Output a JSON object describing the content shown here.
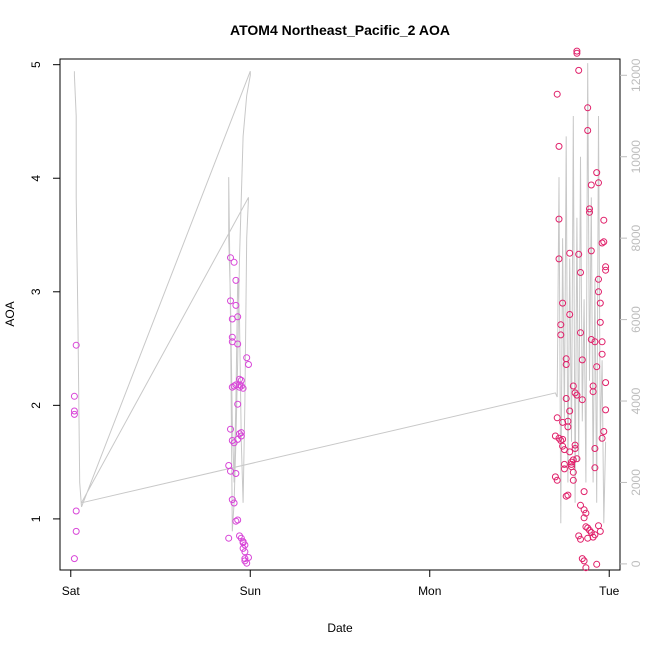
{
  "chart_data": {
    "type": "scatter",
    "title": "ATOM4 Northeast_Pacific_2 AOA",
    "xlabel": "Date",
    "ylabel": "AOA",
    "x_axis": {
      "kind": "time",
      "unit": "days",
      "ticks": [
        {
          "value": 0,
          "label": "Sat"
        },
        {
          "value": 1,
          "label": "Sun"
        },
        {
          "value": 2,
          "label": "Mon"
        },
        {
          "value": 3,
          "label": "Tue"
        }
      ],
      "lim": [
        -0.06,
        3.06
      ]
    },
    "y_axis_left": {
      "label": "AOA",
      "lim": [
        0.55,
        5.05
      ],
      "ticks": [
        1,
        2,
        3,
        4,
        5
      ]
    },
    "y_axis_right": {
      "label": "",
      "lim": [
        -150,
        12400
      ],
      "ticks": [
        0,
        2000,
        4000,
        6000,
        8000,
        10000,
        12000
      ],
      "color": "#bdbdbd"
    },
    "grid": false,
    "legend": "none",
    "colors": {
      "magenta": "#d846d8",
      "pink": "#e0206a",
      "line": "#c8c8c8"
    },
    "series": [
      {
        "kind": "line",
        "axis": "right",
        "x": [
          0.02,
          0.02,
          0.03,
          0.03,
          0.04,
          0.05,
          0.06,
          1.0,
          1.0,
          0.98,
          0.97,
          0.96,
          0.95,
          0.94,
          0.93,
          0.92,
          0.91,
          0.9,
          0.89,
          0.88,
          0.88,
          0.89,
          0.9,
          0.91,
          0.92,
          0.93,
          0.94,
          0.95,
          0.96,
          0.97,
          0.98,
          0.99,
          0.06,
          2.7,
          2.71,
          2.72,
          2.73,
          2.74,
          2.75,
          2.76,
          2.77,
          2.78,
          2.79,
          2.8,
          2.81,
          2.82,
          2.83,
          2.84,
          2.85,
          2.86,
          2.87,
          2.88,
          2.89,
          2.9,
          2.91,
          2.92,
          2.93,
          2.94,
          2.95,
          2.96,
          2.97,
          2.98
        ],
        "y": [
          12100,
          12000,
          11000,
          9000,
          6000,
          2000,
          1400,
          12100,
          12000,
          11500,
          11000,
          10500,
          9000,
          7500,
          5000,
          3000,
          1500,
          800,
          6000,
          9500,
          8000,
          6500,
          3500,
          2000,
          4000,
          7000,
          6000,
          3000,
          1500,
          4000,
          8000,
          9000,
          1500,
          4200,
          4100,
          9500,
          1000,
          8000,
          3500,
          10500,
          2000,
          7500,
          3000,
          11000,
          1500,
          8500,
          2500,
          10000,
          3500,
          6500,
          2000,
          12300,
          4500,
          9000,
          2000,
          7000,
          1500,
          11000,
          3000,
          5000,
          1000,
          3000
        ]
      },
      {
        "kind": "points",
        "name": "",
        "color": "#d846d8",
        "x": [
          0.02,
          0.02,
          0.03,
          0.03,
          0.02,
          0.03,
          0.02,
          0.89,
          0.89,
          0.9,
          0.9,
          0.9,
          0.91,
          0.92,
          0.92,
          0.93,
          0.93,
          0.94,
          0.94,
          0.95,
          0.95,
          0.96,
          0.96,
          0.97,
          0.97,
          0.88,
          0.89,
          0.9,
          0.91,
          0.92,
          0.93,
          0.94,
          0.95,
          0.96,
          0.97,
          0.98,
          0.99,
          0.96,
          0.95,
          0.94,
          0.93,
          0.92,
          0.91,
          0.9,
          0.89,
          0.88,
          0.97,
          0.98,
          0.99,
          0.9,
          0.91,
          0.92,
          0.93,
          0.94,
          0.95
        ],
        "y": [
          2.08,
          1.95,
          2.53,
          1.07,
          1.92,
          0.89,
          0.65,
          3.3,
          2.92,
          2.76,
          2.56,
          2.6,
          3.26,
          3.1,
          2.88,
          2.78,
          2.54,
          2.23,
          2.18,
          1.76,
          1.73,
          0.8,
          0.74,
          0.71,
          0.65,
          1.47,
          1.42,
          1.17,
          1.14,
          0.98,
          0.99,
          0.85,
          0.83,
          0.79,
          0.77,
          2.42,
          2.36,
          2.15,
          2.17,
          2.16,
          2.01,
          1.4,
          1.67,
          1.69,
          1.79,
          0.83,
          0.63,
          0.61,
          0.66,
          2.16,
          2.17,
          2.18,
          1.7,
          1.75,
          2.22
        ]
      },
      {
        "kind": "points",
        "name": "",
        "color": "#e0206a",
        "x": [
          2.7,
          2.71,
          2.71,
          2.72,
          2.72,
          2.73,
          2.73,
          2.74,
          2.74,
          2.75,
          2.75,
          2.76,
          2.76,
          2.77,
          2.77,
          2.78,
          2.78,
          2.79,
          2.79,
          2.8,
          2.8,
          2.81,
          2.81,
          2.82,
          2.82,
          2.83,
          2.83,
          2.84,
          2.84,
          2.85,
          2.85,
          2.86,
          2.86,
          2.87,
          2.87,
          2.88,
          2.88,
          2.89,
          2.89,
          2.9,
          2.9,
          2.91,
          2.91,
          2.92,
          2.92,
          2.93,
          2.93,
          2.94,
          2.94,
          2.95,
          2.95,
          2.96,
          2.96,
          2.97,
          2.97,
          2.98,
          2.98,
          2.7,
          2.71,
          2.72,
          2.73,
          2.74,
          2.75,
          2.76,
          2.77,
          2.78,
          2.79,
          2.8,
          2.81,
          2.82,
          2.83,
          2.84,
          2.85,
          2.86,
          2.87,
          2.88,
          2.89,
          2.9,
          2.91,
          2.92,
          2.93,
          2.94,
          2.95,
          2.96,
          2.97,
          2.98,
          2.72,
          2.74,
          2.76,
          2.78,
          2.8,
          2.82,
          2.84,
          2.86,
          2.88,
          2.9,
          2.92,
          2.94,
          2.96,
          2.98
        ],
        "y": [
          1.73,
          1.89,
          4.74,
          4.28,
          3.64,
          2.71,
          2.62,
          1.85,
          1.7,
          1.48,
          1.44,
          2.06,
          2.41,
          1.86,
          1.81,
          3.34,
          2.8,
          1.5,
          1.46,
          1.52,
          1.41,
          2.11,
          1.65,
          5.1,
          5.12,
          4.95,
          3.33,
          3.17,
          2.64,
          2.4,
          2.05,
          1.24,
          1.08,
          1.05,
          0.93,
          4.62,
          4.42,
          3.73,
          3.7,
          3.94,
          3.36,
          2.17,
          2.12,
          1.62,
          1.45,
          4.05,
          2.34,
          3.96,
          3.11,
          2.9,
          2.73,
          2.56,
          2.45,
          3.63,
          3.44,
          3.22,
          3.19,
          1.37,
          1.34,
          1.71,
          1.69,
          1.64,
          1.61,
          1.2,
          1.21,
          1.59,
          1.48,
          1.34,
          1.62,
          1.53,
          0.85,
          0.82,
          0.65,
          0.63,
          0.57,
          0.92,
          0.9,
          0.88,
          0.84,
          0.86,
          0.6,
          0.94,
          0.89,
          1.71,
          1.77,
          2.2,
          3.29,
          2.9,
          2.36,
          1.95,
          2.17,
          2.09,
          1.12,
          1.01,
          0.83,
          2.58,
          2.56,
          3.0,
          3.43,
          1.96
        ]
      }
    ]
  }
}
